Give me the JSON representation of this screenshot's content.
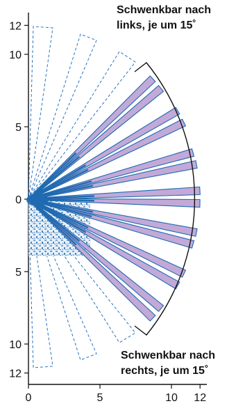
{
  "y_axis": {
    "ticks": [
      {
        "value": 12,
        "label": "12"
      },
      {
        "value": 10,
        "label": "10"
      },
      {
        "value": 5,
        "label": "5"
      },
      {
        "value": 0,
        "label": "0"
      },
      {
        "value": -5,
        "label": "5"
      },
      {
        "value": -10,
        "label": "10"
      },
      {
        "value": -12,
        "label": "12"
      }
    ]
  },
  "x_axis": {
    "ticks": [
      {
        "value": 0,
        "label": "0"
      },
      {
        "value": 5,
        "label": "5"
      },
      {
        "value": 10,
        "label": "10"
      },
      {
        "value": 12,
        "label": "12"
      }
    ]
  },
  "captions": {
    "left_line1": "Schwenkbar nach",
    "left_line2": "links, je um 15˚",
    "right_line1": "Schwenkbar nach",
    "right_line2": "rechts, je um 15˚"
  },
  "colors": {
    "beam_fill": "#c3a9d8",
    "beam_stroke": "#1f6ab0",
    "dashed": "#2a72c4",
    "origin_blue": "#1f6ab0",
    "arc": "#111111"
  }
}
